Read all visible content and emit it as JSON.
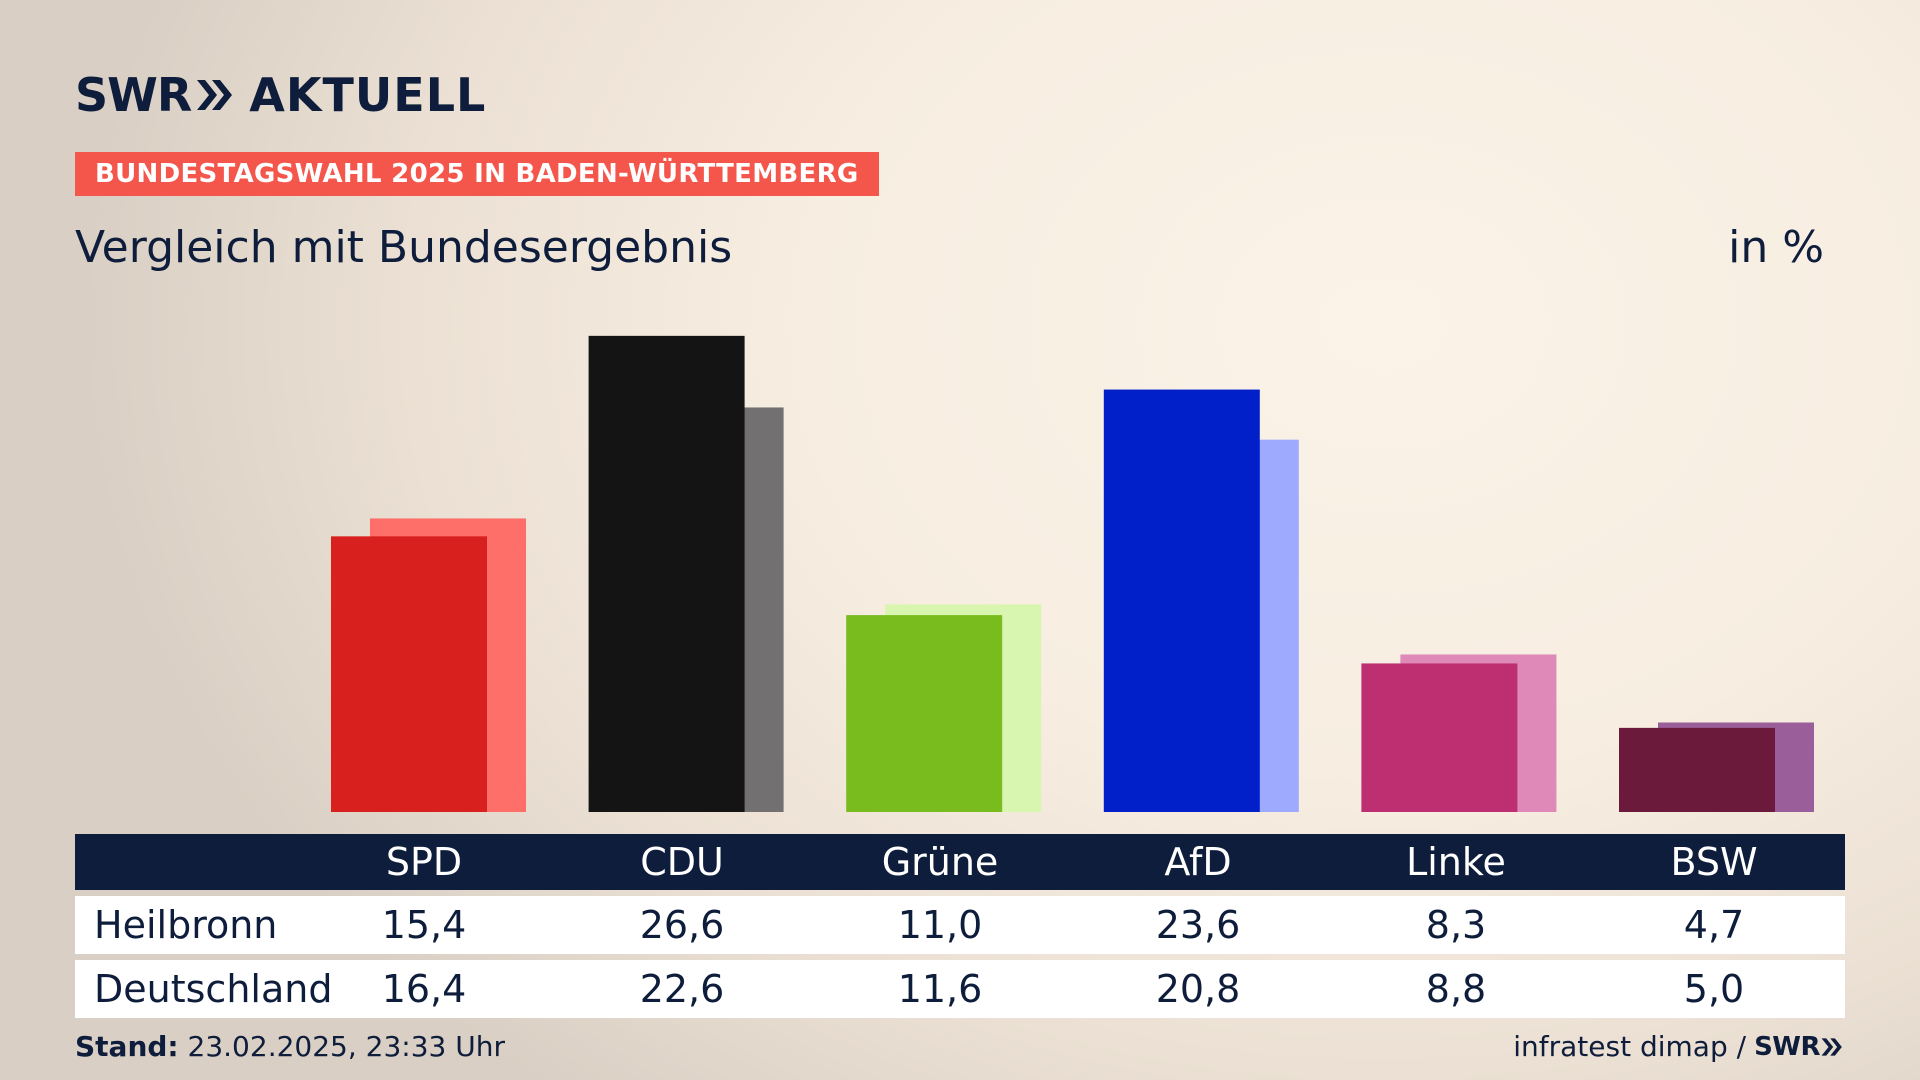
{
  "brand": {
    "logo_text": "SWR",
    "logo_suffix": "AKTUELL",
    "navy": "#0e1d3b",
    "accent": "#f4564b"
  },
  "banner": "BUNDESTAGSWAHL 2025 IN BADEN-WÜRTTEMBERG",
  "subtitle": "Vergleich mit Bundesergebnis",
  "unit": "in %",
  "chart_data": {
    "type": "bar",
    "categories": [
      "SPD",
      "CDU",
      "Grüne",
      "AfD",
      "Linke",
      "BSW"
    ],
    "series": [
      {
        "name": "Heilbronn",
        "values": [
          15.4,
          26.6,
          11.0,
          23.6,
          8.3,
          4.7
        ],
        "colors": [
          "#d8201f",
          "#141414",
          "#78bc1e",
          "#0220c9",
          "#be2f72",
          "#6c1a3c"
        ]
      },
      {
        "name": "Deutschland",
        "values": [
          16.4,
          22.6,
          11.6,
          20.8,
          8.8,
          5.0
        ],
        "colors": [
          "#ff6f6a",
          "#727070",
          "#d8f6b0",
          "#9eaafe",
          "#de89b7",
          "#9a5f9a"
        ]
      }
    ],
    "ylim": [
      0,
      28
    ]
  },
  "table": {
    "headers": [
      "SPD",
      "CDU",
      "Grüne",
      "AfD",
      "Linke",
      "BSW"
    ],
    "rows": [
      {
        "label": "Heilbronn",
        "values": [
          "15,4",
          "26,6",
          "11,0",
          "23,6",
          "8,3",
          "4,7"
        ]
      },
      {
        "label": "Deutschland",
        "values": [
          "16,4",
          "22,6",
          "11,6",
          "20,8",
          "8,8",
          "5,0"
        ]
      }
    ]
  },
  "footer": {
    "stand_label": "Stand:",
    "stand_value": "23.02.2025, 23:33 Uhr",
    "source": "infratest dimap /",
    "source_logo": "SWR"
  }
}
